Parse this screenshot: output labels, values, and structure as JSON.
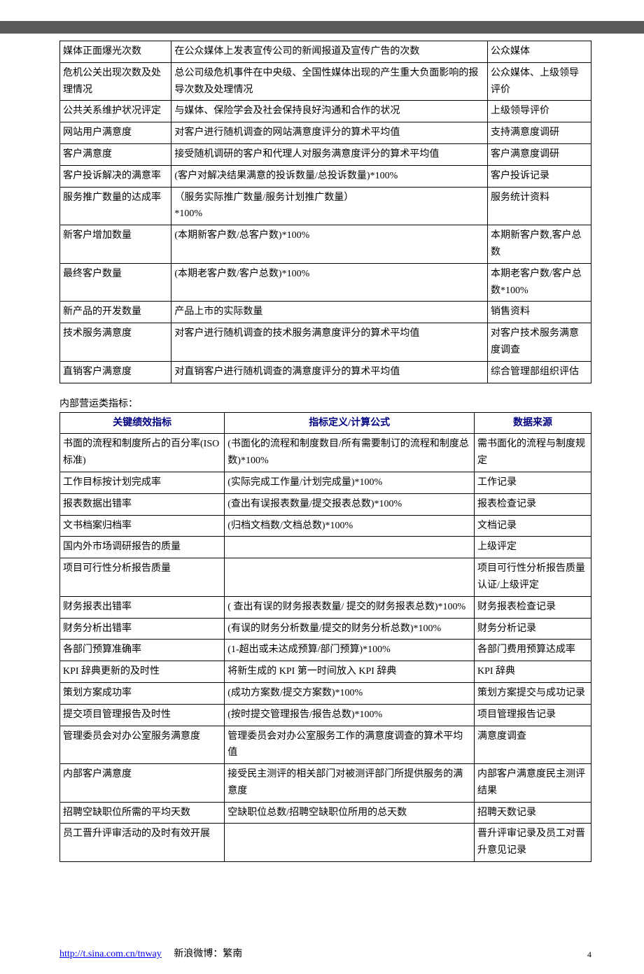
{
  "table1": {
    "rows": [
      {
        "c1": "媒体正面爆光次数",
        "c2": "在公众媒体上发表宣传公司的新闻报道及宣传广告的次数",
        "c3": "公众媒体"
      },
      {
        "c1": "危机公关出现次数及处理情况",
        "c2": "总公司级危机事件在中央级、全国性媒体出现的产生重大负面影响的报导次数及处理情况",
        "c3": "公众媒体、上级领导评价"
      },
      {
        "c1": "公共关系维护状况评定",
        "c2": "与媒体、保险学会及社会保持良好沟通和合作的状况",
        "c3": "上级领导评价"
      },
      {
        "c1": "网站用户满意度",
        "c2": "对客户进行随机调查的网站满意度评分的算术平均值",
        "c3": "支持满意度调研"
      },
      {
        "c1": "客户满意度",
        "c2": "接受随机调研的客户和代理人对服务满意度评分的算术平均值",
        "c3": "客户满意度调研"
      },
      {
        "c1": "客户投诉解决的满意率",
        "c2": "(客户对解决结果满意的投诉数量/总投诉数量)*100%",
        "c3": "客户投诉记录"
      },
      {
        "c1": "服务推广数量的达成率",
        "c2": "（服务实际推广数量/服务计划推广数量）\n*100%",
        "c3": "服务统计资料"
      },
      {
        "c1": "新客户增加数量",
        "c2": "(本期新客户数/总客户数)*100%",
        "c3": "本期新客户数,客户总数"
      },
      {
        "c1": "最终客户数量",
        "c2": "(本期老客户数/客户总数)*100%",
        "c3": "本期老客户数/客户总数*100%"
      },
      {
        "c1": "新产品的开发数量",
        "c2": "产品上市的实际数量",
        "c3": "销售资料"
      },
      {
        "c1": "技术服务满意度",
        "c2": "对客户进行随机调查的技术服务满意度评分的算术平均值",
        "c3": "对客户技术服务满意度调查"
      },
      {
        "c1": "直销客户满意度",
        "c2": "对直销客户进行随机调查的满意度评分的算术平均值",
        "c3": "综合管理部组织评估"
      }
    ]
  },
  "section2_title": "内部营运类指标：",
  "table2": {
    "headers": {
      "h1": "关键绩效指标",
      "h2": "指标定义/计算公式",
      "h3": "数据来源"
    },
    "rows": [
      {
        "c1": "书面的流程和制度所占的百分率(ISO 标准)",
        "c2": "(书面化的流程和制度数目/所有需要制订的流程和制度总数)*100%",
        "c3": "需书面化的流程与制度规定"
      },
      {
        "c1": "工作目标按计划完成率",
        "c2": "(实际完成工作量/计划完成量)*100%",
        "c3": "工作记录"
      },
      {
        "c1": "报表数据出错率",
        "c2": "(查出有误报表数量/提交报表总数)*100%",
        "c3": "报表检查记录"
      },
      {
        "c1": "文书档案归档率",
        "c2": "(归档文档数/文档总数)*100%",
        "c3": "文档记录"
      },
      {
        "c1": "国内外市场调研报告的质量",
        "c2": "",
        "c3": "上级评定"
      },
      {
        "c1": "项目可行性分析报告质量",
        "c2": "",
        "c3": "项目可行性分析报告质量认证/上级评定"
      },
      {
        "c1": "财务报表出错率",
        "c2": "( 查出有误的财务报表数量/ 提交的财务报表总数)*100%",
        "c3": "财务报表检查记录"
      },
      {
        "c1": "财务分析出错率",
        "c2": "(有误的财务分析数量/提交的财务分析总数)*100%",
        "c3": "财务分析记录"
      },
      {
        "c1": "各部门预算准确率",
        "c2": "(1-超出或未达成预算/部门预算)*100%",
        "c3": "各部门费用预算达成率"
      },
      {
        "c1": "KPI 辞典更新的及时性",
        "c2": "将新生成的 KPI 第一时间放入 KPI 辞典",
        "c3": "KPI 辞典"
      },
      {
        "c1": "策划方案成功率",
        "c2": "(成功方案数/提交方案数)*100%",
        "c3": "策划方案提交与成功记录"
      },
      {
        "c1": "提交项目管理报告及时性",
        "c2": "(按时提交管理报告/报告总数)*100%",
        "c3": "项目管理报告记录"
      },
      {
        "c1": "管理委员会对办公室服务满意度",
        "c2": "管理委员会对办公室服务工作的满意度调查的算术平均值",
        "c3": "满意度调查"
      },
      {
        "c1": "内部客户满意度",
        "c2": "接受民主测评的相关部门对被测评部门所提供服务的满意度",
        "c3": "内部客户满意度民主测评结果"
      },
      {
        "c1": "招聘空缺职位所需的平均天数",
        "c2": "空缺职位总数/招聘空缺职位所用的总天数",
        "c3": "招聘天数记录"
      },
      {
        "c1": "员工晋升评审活动的及时有效开展",
        "c2": "",
        "c3": "晋升评审记录及员工对晋升意见记录"
      }
    ]
  },
  "footer": {
    "link_text": "http://t.sina.com.cn/tnway",
    "weibo": "新浪微博：繁南",
    "page": "4"
  }
}
